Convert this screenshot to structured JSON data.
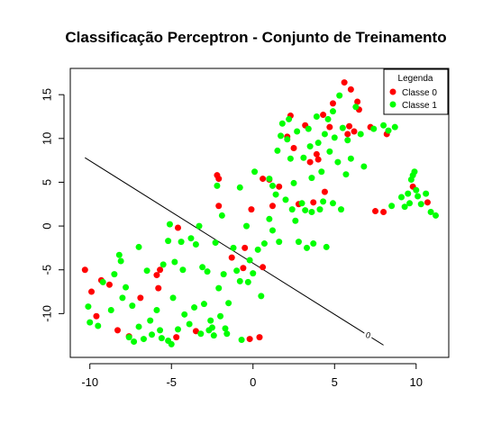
{
  "chart_data": {
    "type": "scatter",
    "title": "Classificação Perceptron - Conjunto de Treinamento",
    "xlabel": "",
    "ylabel": "",
    "xlim": [
      -11.2,
      12.0
    ],
    "ylim": [
      -15.0,
      18.0
    ],
    "x_ticks": [
      -10,
      -5,
      0,
      5,
      10
    ],
    "y_ticks": [
      -10,
      -5,
      0,
      5,
      10,
      15
    ],
    "grid": false,
    "legend": {
      "title": "Legenda",
      "position": "top-right",
      "entries": [
        {
          "label": "Classe 0",
          "color": "#ff0000"
        },
        {
          "label": "Classe 1",
          "color": "#00ff00"
        }
      ]
    },
    "boundary": {
      "label": "0",
      "color": "#000000",
      "points": [
        [
          -10.3,
          7.8
        ],
        [
          8.0,
          -13.6
        ]
      ]
    },
    "series": [
      {
        "name": "Classe 0",
        "color": "#ff0000",
        "points": [
          [
            -10.3,
            -5.0
          ],
          [
            -9.9,
            -7.5
          ],
          [
            -9.6,
            -10.3
          ],
          [
            -9.3,
            -6.2
          ],
          [
            -8.8,
            -6.7
          ],
          [
            -8.3,
            -11.9
          ],
          [
            -7.6,
            -12.6
          ],
          [
            -6.9,
            -8.2
          ],
          [
            -5.9,
            -5.6
          ],
          [
            -5.8,
            -7.1
          ],
          [
            -5.7,
            -5.0
          ],
          [
            -4.7,
            -12.7
          ],
          [
            -4.6,
            -0.2
          ],
          [
            -3.5,
            -12.0
          ],
          [
            -2.2,
            5.8
          ],
          [
            -2.1,
            2.3
          ],
          [
            -2.1,
            5.4
          ],
          [
            -1.3,
            -3.6
          ],
          [
            -0.6,
            -4.8
          ],
          [
            -0.5,
            -2.5
          ],
          [
            -0.2,
            -12.9
          ],
          [
            -0.1,
            1.9
          ],
          [
            0.4,
            -12.7
          ],
          [
            0.6,
            5.4
          ],
          [
            0.6,
            -4.7
          ],
          [
            1.0,
            5.3
          ],
          [
            1.2,
            2.3
          ],
          [
            1.6,
            4.5
          ],
          [
            2.1,
            10.2
          ],
          [
            2.3,
            12.6
          ],
          [
            2.5,
            8.9
          ],
          [
            2.8,
            2.5
          ],
          [
            3.2,
            11.5
          ],
          [
            3.5,
            7.3
          ],
          [
            3.7,
            2.7
          ],
          [
            3.9,
            8.2
          ],
          [
            4.0,
            7.6
          ],
          [
            4.3,
            12.7
          ],
          [
            4.4,
            3.9
          ],
          [
            4.7,
            11.3
          ],
          [
            4.9,
            14.0
          ],
          [
            5.6,
            16.4
          ],
          [
            5.8,
            10.5
          ],
          [
            5.9,
            11.4
          ],
          [
            6.0,
            15.6
          ],
          [
            6.2,
            10.8
          ],
          [
            6.4,
            14.2
          ],
          [
            6.5,
            13.3
          ],
          [
            7.2,
            11.3
          ],
          [
            7.5,
            1.7
          ],
          [
            8.0,
            1.6
          ],
          [
            8.2,
            10.5
          ],
          [
            9.8,
            4.5
          ],
          [
            10.7,
            2.7
          ]
        ]
      },
      {
        "name": "Classe 1",
        "color": "#00ff00",
        "points": [
          [
            -10.1,
            -9.2
          ],
          [
            -10.0,
            -11.0
          ],
          [
            -9.5,
            -11.4
          ],
          [
            -9.2,
            -6.4
          ],
          [
            -8.7,
            -9.6
          ],
          [
            -8.5,
            -5.5
          ],
          [
            -8.2,
            -3.3
          ],
          [
            -8.1,
            -4.0
          ],
          [
            -8.0,
            -8.2
          ],
          [
            -7.8,
            -7.0
          ],
          [
            -7.6,
            -12.7
          ],
          [
            -7.4,
            -9.1
          ],
          [
            -7.3,
            -13.2
          ],
          [
            -7.0,
            -2.4
          ],
          [
            -7.0,
            -11.5
          ],
          [
            -6.7,
            -12.9
          ],
          [
            -6.5,
            -5.1
          ],
          [
            -6.3,
            -10.8
          ],
          [
            -6.2,
            -12.4
          ],
          [
            -5.9,
            -9.6
          ],
          [
            -5.7,
            -11.9
          ],
          [
            -5.6,
            -12.8
          ],
          [
            -5.5,
            -4.4
          ],
          [
            -5.2,
            -13.1
          ],
          [
            -5.2,
            -1.7
          ],
          [
            -5.1,
            0.2
          ],
          [
            -5.0,
            -13.5
          ],
          [
            -4.9,
            -8.2
          ],
          [
            -4.8,
            -4.1
          ],
          [
            -4.6,
            -11.8
          ],
          [
            -4.4,
            -1.8
          ],
          [
            -4.3,
            -5.0
          ],
          [
            -4.2,
            -10.1
          ],
          [
            -3.9,
            -11.2
          ],
          [
            -3.8,
            -1.4
          ],
          [
            -3.6,
            -9.3
          ],
          [
            -3.5,
            -2.1
          ],
          [
            -3.3,
            0.0
          ],
          [
            -3.2,
            -12.3
          ],
          [
            -3.1,
            -4.7
          ],
          [
            -3.0,
            -8.9
          ],
          [
            -2.8,
            -5.2
          ],
          [
            -2.7,
            -11.9
          ],
          [
            -2.6,
            -10.8
          ],
          [
            -2.5,
            -11.6
          ],
          [
            -2.4,
            -12.5
          ],
          [
            -2.3,
            -1.9
          ],
          [
            -2.2,
            4.6
          ],
          [
            -2.1,
            -7.1
          ],
          [
            -2.0,
            -10.3
          ],
          [
            -1.9,
            1.2
          ],
          [
            -1.8,
            -5.5
          ],
          [
            -1.7,
            -11.7
          ],
          [
            -1.6,
            -12.3
          ],
          [
            -1.5,
            -8.8
          ],
          [
            -1.2,
            -2.5
          ],
          [
            -1.0,
            -5.1
          ],
          [
            -0.8,
            4.4
          ],
          [
            -0.8,
            -6.3
          ],
          [
            -0.7,
            -13.0
          ],
          [
            -0.4,
            0.0
          ],
          [
            -0.3,
            -6.4
          ],
          [
            -0.2,
            -3.9
          ],
          [
            0.0,
            -5.4
          ],
          [
            0.1,
            6.2
          ],
          [
            0.3,
            -2.7
          ],
          [
            0.5,
            -8.0
          ],
          [
            0.7,
            -2.0
          ],
          [
            1.0,
            5.4
          ],
          [
            1.0,
            0.8
          ],
          [
            1.2,
            4.6
          ],
          [
            1.2,
            -0.5
          ],
          [
            1.4,
            3.6
          ],
          [
            1.5,
            8.6
          ],
          [
            1.6,
            -1.8
          ],
          [
            1.7,
            10.3
          ],
          [
            1.8,
            11.7
          ],
          [
            2.0,
            3.0
          ],
          [
            2.1,
            9.9
          ],
          [
            2.2,
            12.2
          ],
          [
            2.3,
            7.7
          ],
          [
            2.4,
            1.9
          ],
          [
            2.5,
            4.9
          ],
          [
            2.6,
            0.6
          ],
          [
            2.7,
            10.8
          ],
          [
            2.8,
            -1.8
          ],
          [
            3.0,
            2.6
          ],
          [
            3.1,
            7.8
          ],
          [
            3.2,
            1.8
          ],
          [
            3.3,
            -2.5
          ],
          [
            3.4,
            11.1
          ],
          [
            3.5,
            9.1
          ],
          [
            3.6,
            5.5
          ],
          [
            3.6,
            1.6
          ],
          [
            3.7,
            -2.0
          ],
          [
            3.9,
            12.5
          ],
          [
            4.0,
            9.5
          ],
          [
            4.1,
            1.9
          ],
          [
            4.2,
            6.2
          ],
          [
            4.3,
            2.8
          ],
          [
            4.4,
            10.5
          ],
          [
            4.5,
            -2.4
          ],
          [
            4.6,
            12.2
          ],
          [
            4.7,
            8.5
          ],
          [
            4.9,
            13.1
          ],
          [
            4.9,
            2.6
          ],
          [
            5.0,
            10.1
          ],
          [
            5.2,
            7.3
          ],
          [
            5.3,
            14.9
          ],
          [
            5.4,
            1.9
          ],
          [
            5.5,
            11.2
          ],
          [
            5.7,
            5.9
          ],
          [
            5.8,
            9.8
          ],
          [
            6.0,
            7.7
          ],
          [
            6.3,
            13.6
          ],
          [
            6.6,
            10.5
          ],
          [
            6.8,
            6.8
          ],
          [
            7.4,
            11.1
          ],
          [
            8.0,
            11.5
          ],
          [
            8.3,
            10.9
          ],
          [
            8.5,
            2.3
          ],
          [
            8.7,
            11.3
          ],
          [
            9.1,
            3.3
          ],
          [
            9.3,
            2.2
          ],
          [
            9.5,
            3.7
          ],
          [
            9.6,
            2.6
          ],
          [
            9.7,
            5.3
          ],
          [
            9.8,
            5.8
          ],
          [
            9.9,
            6.2
          ],
          [
            10.0,
            4.1
          ],
          [
            10.1,
            3.4
          ],
          [
            10.3,
            2.5
          ],
          [
            10.6,
            3.7
          ],
          [
            10.9,
            1.6
          ],
          [
            11.2,
            1.2
          ]
        ]
      }
    ]
  }
}
